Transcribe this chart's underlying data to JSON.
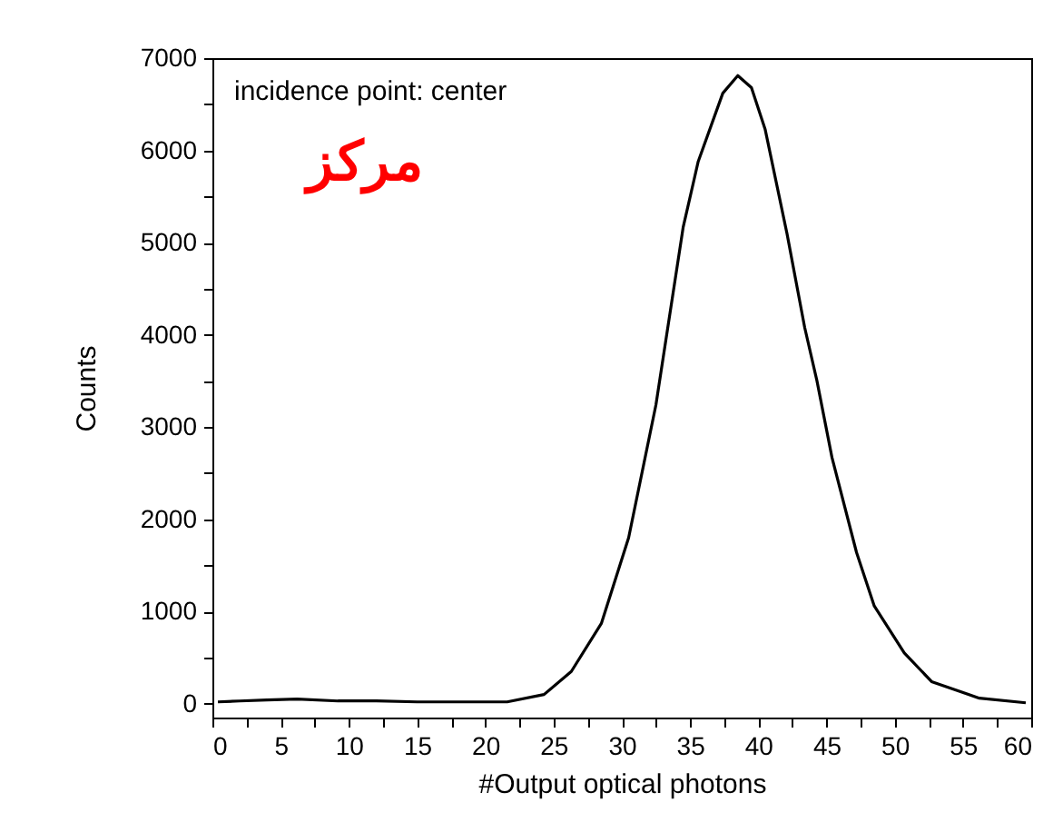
{
  "chart_data": {
    "type": "line",
    "xlabel": "#Output optical photons",
    "ylabel": "Counts",
    "annotations": [
      "incidence point: center",
      "مرکز"
    ],
    "x": [
      0.4,
      2,
      4,
      6.2,
      9.2,
      12,
      15,
      18,
      21.6,
      24.3,
      26.3,
      28.5,
      30.5,
      32.5,
      34.5,
      35.6,
      37.4,
      38.5,
      39.5,
      40.5,
      42.1,
      43.4,
      44.3,
      45.4,
      47.2,
      48.5,
      50.7,
      52.7,
      56.2,
      59.6
    ],
    "series": [
      {
        "color": "#000000",
        "values": [
          20,
          30,
          40,
          50,
          30,
          30,
          20,
          20,
          20,
          100,
          350,
          870,
          1800,
          3240,
          5170,
          5880,
          6620,
          6810,
          6680,
          6230,
          5100,
          4080,
          3500,
          2670,
          1640,
          1060,
          550,
          240,
          60,
          10
        ]
      }
    ],
    "xlim": [
      0,
      60
    ],
    "ylim": [
      -150,
      7000
    ],
    "xticks": [
      0,
      {
        "value": 2.5,
        "label": null
      },
      5,
      {
        "value": 7.5,
        "label": null
      },
      10,
      {
        "value": 12.5,
        "label": null
      },
      15,
      {
        "value": 17.5,
        "label": null
      },
      20,
      {
        "value": 22.5,
        "label": null
      },
      25,
      {
        "value": 27.5,
        "label": null
      },
      30,
      {
        "value": 32.5,
        "label": null
      },
      35,
      {
        "value": 37.5,
        "label": null
      },
      40,
      {
        "value": 42.5,
        "label": null
      },
      45,
      {
        "value": 47.5,
        "label": null
      },
      50,
      {
        "value": 52.5,
        "label": null
      },
      55,
      {
        "value": 57.5,
        "label": null
      },
      60
    ],
    "yticks": [
      0,
      {
        "value": 500,
        "label": null
      },
      1000,
      {
        "value": 1500,
        "label": null
      },
      2000,
      {
        "value": 2500,
        "label": null
      },
      3000,
      {
        "value": 3500,
        "label": null
      },
      4000,
      {
        "value": 4500,
        "label": null
      },
      5000,
      {
        "value": 5500,
        "label": null
      },
      6000,
      {
        "value": 6500,
        "label": null
      },
      7000
    ],
    "line_style": "solid",
    "marker": "none"
  }
}
